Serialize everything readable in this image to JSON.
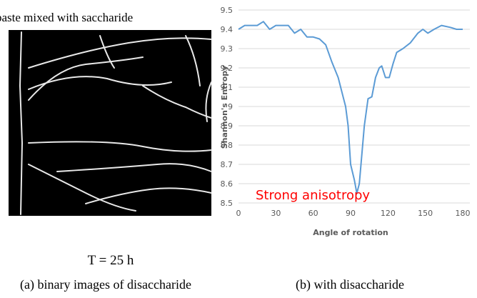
{
  "figure": {
    "header": "paste mixed with saccharide",
    "time_label": "T = 25 h",
    "caption_a": "(a) binary images of disaccharide",
    "caption_b": "(b) with disaccharide"
  },
  "chart_data": {
    "type": "line",
    "x_label": "Angle of rotation",
    "y_label": "Shannon's Entropy",
    "annotation": "Strong anisotropy",
    "annotation_color": "#ff0000",
    "x": [
      0,
      5,
      10,
      15,
      20,
      25,
      30,
      35,
      40,
      45,
      50,
      55,
      60,
      65,
      70,
      75,
      80,
      84,
      86,
      88,
      90,
      93,
      95,
      97,
      99,
      101,
      104,
      107,
      110,
      113,
      115,
      118,
      121,
      124,
      127,
      132,
      138,
      144,
      148,
      152,
      157,
      163,
      170,
      175,
      180
    ],
    "series": [
      {
        "color": "#5b9bd5",
        "values": [
          9.4,
          9.42,
          9.42,
          9.42,
          9.44,
          9.4,
          9.42,
          9.42,
          9.42,
          9.38,
          9.4,
          9.36,
          9.36,
          9.35,
          9.32,
          9.23,
          9.15,
          9.05,
          9.0,
          8.9,
          8.7,
          8.62,
          8.55,
          8.6,
          8.75,
          8.9,
          9.04,
          9.05,
          9.15,
          9.2,
          9.21,
          9.15,
          9.15,
          9.22,
          9.28,
          9.3,
          9.33,
          9.38,
          9.4,
          9.38,
          9.4,
          9.42,
          9.41,
          9.4,
          9.4
        ]
      }
    ],
    "xlim": [
      0,
      180
    ],
    "xticks": [
      0,
      30,
      60,
      90,
      120,
      150,
      180
    ],
    "ylim": [
      8.5,
      9.5
    ],
    "yticks": [
      8.5,
      8.6,
      8.7,
      8.8,
      8.9,
      9,
      9.1,
      9.2,
      9.3,
      9.4,
      9.5
    ],
    "grid": true
  }
}
